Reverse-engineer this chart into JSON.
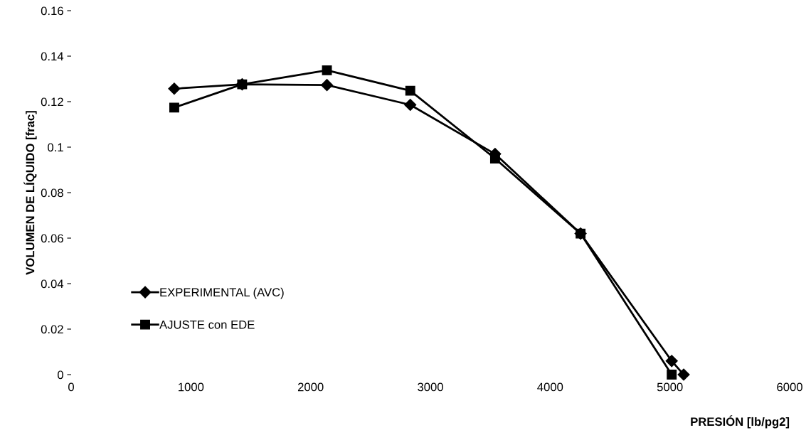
{
  "chart_data": {
    "type": "line",
    "xlabel": "PRESIÓN [lb/pg2]",
    "ylabel": "VOLUMEN DE LÍQUIDO [frac]",
    "xlim": [
      0,
      6000
    ],
    "xticks": [
      0,
      1000,
      2000,
      3000,
      4000,
      5000,
      6000
    ],
    "ylim": [
      0,
      0.16
    ],
    "yticks": [
      {
        "value": 0,
        "label": "0"
      },
      0.02,
      0.04,
      0.06,
      0.08,
      {
        "value": 0.1,
        "label": "0.1"
      },
      0.12,
      0.14,
      0.16
    ],
    "grid": false,
    "legend": "lower left",
    "line_style": "solid",
    "series": [
      {
        "name": "EXPERIMENTAL (AVC)",
        "color": "#000000",
        "marker": "diamond",
        "x": [
          861,
          1428,
          2136,
          2832,
          3540,
          4254,
          5015,
          5115
        ],
        "values": [
          0.1257,
          0.1276,
          0.1273,
          0.1186,
          0.097,
          0.062,
          0.006,
          0
        ]
      },
      {
        "name": "AJUSTE con EDE",
        "color": "#000000",
        "marker": "square",
        "x": [
          861,
          1428,
          2136,
          2832,
          3540,
          4254,
          5015
        ],
        "values": [
          0.1174,
          0.1276,
          0.1338,
          0.1248,
          0.095,
          0.062,
          0
        ]
      }
    ]
  }
}
